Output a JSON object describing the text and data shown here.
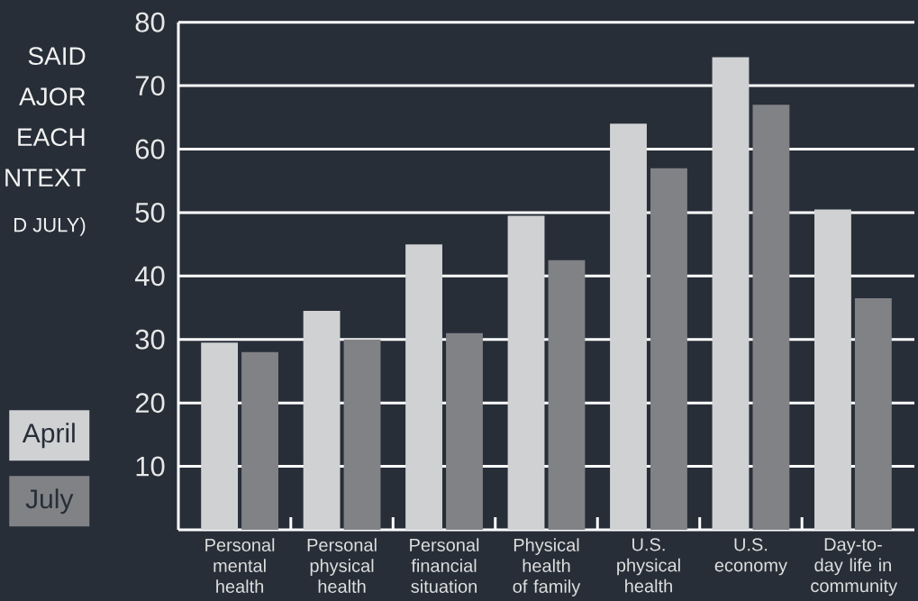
{
  "chart_data": {
    "type": "bar",
    "title": "SAID AJOR EACH NTEXT",
    "subtitle": "D JULY)",
    "categories": [
      "Personal mental health",
      "Personal physical health",
      "Personal financial situation",
      "Physical health of family",
      "U.S. physical health",
      "U.S. economy",
      "Day-to-day life in community"
    ],
    "series": [
      {
        "name": "April",
        "color": "#d0d1d3",
        "values": [
          29.5,
          34.5,
          45,
          49.5,
          64,
          74.5,
          50.5
        ]
      },
      {
        "name": "July",
        "color": "#818286",
        "values": [
          28,
          30,
          31,
          42.5,
          57,
          67,
          36.5
        ]
      }
    ],
    "ylim": [
      0,
      80
    ],
    "yticks": [
      10,
      20,
      30,
      40,
      50,
      60,
      70,
      80
    ],
    "grid": "y",
    "legend": "left"
  }
}
